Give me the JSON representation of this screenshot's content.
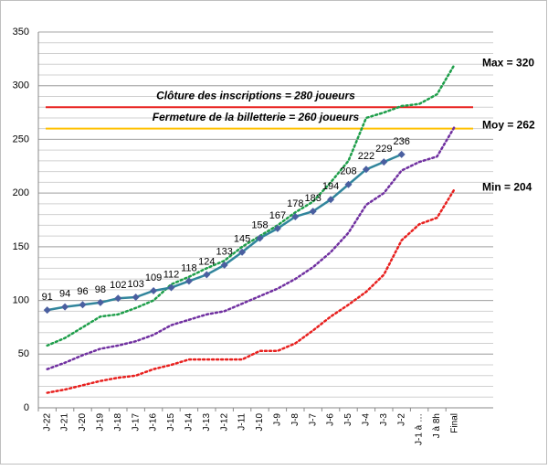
{
  "chart_data": {
    "type": "line",
    "categories": [
      "J-22",
      "J-21",
      "J-20",
      "J-19",
      "J-18",
      "J-17",
      "J-16",
      "J-15",
      "J-14",
      "J-13",
      "J-12",
      "J-11",
      "J-10",
      "J-9",
      "J-8",
      "J-7",
      "J-6",
      "J-5",
      "J-4",
      "J-3",
      "J-2",
      "J-1 à …",
      "J à 8h",
      "Final"
    ],
    "series": [
      {
        "color": "#31859c",
        "marker_color": "#4a5fa0",
        "style": "solid",
        "data_labels": true,
        "values": [
          91,
          94,
          96,
          98,
          102,
          103,
          109,
          112,
          118,
          124,
          133,
          145,
          158,
          167,
          178,
          183,
          194,
          208,
          222,
          229,
          236,
          null,
          null,
          null
        ]
      },
      {
        "name": "Max = 320",
        "color": "#1e9e4a",
        "style": "dotted",
        "values": [
          58,
          65,
          75,
          85,
          87,
          93,
          100,
          115,
          122,
          130,
          137,
          150,
          160,
          170,
          182,
          192,
          210,
          230,
          270,
          275,
          281,
          283,
          292,
          320
        ]
      },
      {
        "name": "Moy = 262",
        "color": "#7030a0",
        "style": "dotted",
        "values": [
          36,
          42,
          49,
          55,
          58,
          62,
          68,
          77,
          82,
          87,
          90,
          97,
          104,
          111,
          120,
          131,
          145,
          163,
          189,
          200,
          221,
          229,
          234,
          262
        ]
      },
      {
        "name": "Min = 204",
        "color": "#e8201e",
        "style": "dotted",
        "values": [
          14,
          17,
          21,
          25,
          28,
          30,
          36,
          40,
          45,
          45,
          45,
          45,
          53,
          53,
          60,
          72,
          85,
          96,
          108,
          124,
          156,
          171,
          177,
          204
        ]
      }
    ],
    "reference_lines": [
      {
        "value": 280,
        "label": "Clôture des inscriptions = 280 joueurs",
        "color": "#e8201e",
        "label_color": "#e8201e"
      },
      {
        "value": 260,
        "label": "Fermeture de la billetterie = 260 joueurs",
        "color": "#ffc000",
        "label_color": "#e36c09"
      }
    ],
    "ylim": [
      0,
      350
    ],
    "yticks": [
      0,
      50,
      100,
      150,
      200,
      250,
      300,
      350
    ],
    "grid": true,
    "grid_step": 10
  }
}
